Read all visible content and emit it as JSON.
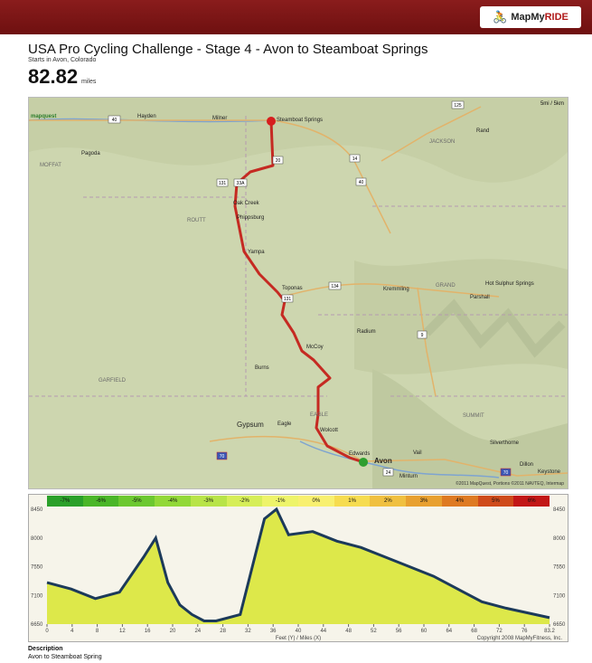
{
  "brand": {
    "prefix": "MapMy",
    "name": "RIDE"
  },
  "route": {
    "title": "USA Pro Cycling Challenge - Stage 4 - Avon to Steamboat Springs",
    "starts_in": "Starts in Avon, Colorado",
    "distance": "82.82",
    "distance_unit": "miles"
  },
  "map": {
    "provider": "mapquest",
    "scale_mi": "5mi",
    "scale_km": "5km",
    "copyright": "©2011 MapQuest, Portions ©2011 NAVTEQ, Intermap",
    "places": [
      "Steamboat Springs",
      "Hayden",
      "Milner",
      "Oak Creek",
      "Phippsburg",
      "Yampa",
      "Toponas",
      "McCoy",
      "Burns",
      "Wolcott",
      "Edwards",
      "Avon",
      "Vail",
      "Minturn",
      "Gypsum",
      "Eagle",
      "Silverthorne",
      "Dillon",
      "Keystone",
      "Kremmling",
      "Radium",
      "Parshall",
      "Hot Sulphur Springs",
      "Rand",
      "Pagoda"
    ],
    "regions": [
      "MOFFAT",
      "ROUTT",
      "JACKSON",
      "GRAND",
      "GARFIELD",
      "EAGLE",
      "SUMMIT"
    ],
    "shields": [
      "40",
      "131",
      "20",
      "14",
      "40",
      "134",
      "9",
      "70",
      "24",
      "125",
      "70",
      "131",
      "33A"
    ]
  },
  "elevation": {
    "grades": [
      "-7%",
      "-6%",
      "-5%",
      "-4%",
      "-3%",
      "-2%",
      "-1%",
      "0%",
      "1%",
      "2%",
      "3%",
      "4%",
      "5%",
      "6%"
    ],
    "grade_colors": [
      "#2aa02a",
      "#4ab628",
      "#6cc830",
      "#92d838",
      "#b8e448",
      "#d6ee58",
      "#eef46a",
      "#f8f070",
      "#f6dc50",
      "#f0c040",
      "#e8a030",
      "#de7a22",
      "#cf4a1a",
      "#c21616"
    ],
    "y_ticks": [
      "8450",
      "8000",
      "7550",
      "7100",
      "6650"
    ],
    "x_ticks": [
      "0",
      "4",
      "8",
      "12",
      "16",
      "20",
      "24",
      "28",
      "32",
      "36",
      "40",
      "44",
      "48",
      "52",
      "56",
      "60",
      "64",
      "68",
      "72",
      "76",
      "83.2"
    ],
    "x_label": "Feet (Y) / Miles (X)",
    "copyright": "Copyright 2008 MapMyFitness, Inc."
  },
  "description": {
    "heading": "Description",
    "text": "Avon to Steamboat Spring"
  }
}
